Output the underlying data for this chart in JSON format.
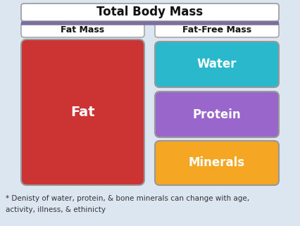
{
  "title": "Total Body Mass",
  "title_fontsize": 12,
  "background_color": "#dce6f1",
  "fat_mass_label": "Fat Mass",
  "fat_free_mass_label": "Fat-Free Mass",
  "fat_label": "Fat",
  "water_label": "Water",
  "protein_label": "Protein",
  "minerals_label": "Minerals",
  "footnote_line1": "* Denisty of water, protein, & bone minerals can change with age,",
  "footnote_line2": "activity, illness, & ethinicty",
  "fat_color": "#cc3333",
  "water_color": "#29b8cc",
  "protein_color": "#9966cc",
  "minerals_color": "#f5a623",
  "header_bg": "#ffffff",
  "title_border_color": "#7b6fa0",
  "box_edge_color": "#999999",
  "dark_text": "#111111",
  "white": "#ffffff",
  "footnote_color": "#333333"
}
